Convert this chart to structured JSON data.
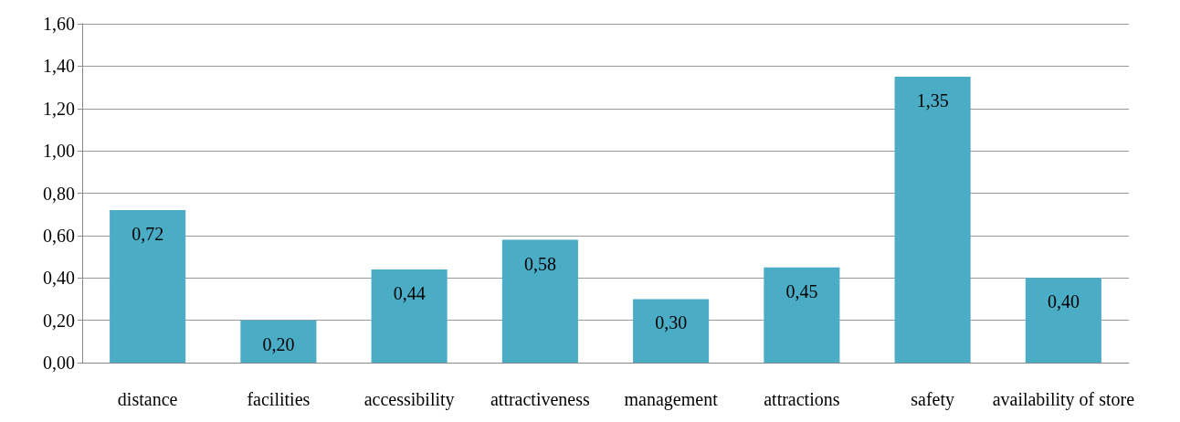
{
  "chart_data": {
    "type": "bar",
    "categories": [
      "distance",
      "facilities",
      "accessibility",
      "attractiveness",
      "management",
      "attractions",
      "safety",
      "availability of store"
    ],
    "values": [
      0.72,
      0.2,
      0.44,
      0.58,
      0.3,
      0.45,
      1.35,
      0.4
    ],
    "value_labels": [
      "0,72",
      "0,20",
      "0,44",
      "0,58",
      "0,30",
      "0,45",
      "1,35",
      "0,40"
    ],
    "color": "#4bacc6",
    "ylim": [
      0,
      1.6
    ],
    "yticks": [
      {
        "value": 0,
        "label": "0,00"
      },
      {
        "value": 0.2,
        "label": "0,20"
      },
      {
        "value": 0.4,
        "label": "0,40"
      },
      {
        "value": 0.6,
        "label": "0,60"
      },
      {
        "value": 0.8,
        "label": "0,80"
      },
      {
        "value": 1,
        "label": "1,00"
      },
      {
        "value": 1.2,
        "label": "1,20"
      },
      {
        "value": 1.4,
        "label": "1,40"
      },
      {
        "value": 1.6,
        "label": "1,60"
      }
    ],
    "grid": "y"
  }
}
